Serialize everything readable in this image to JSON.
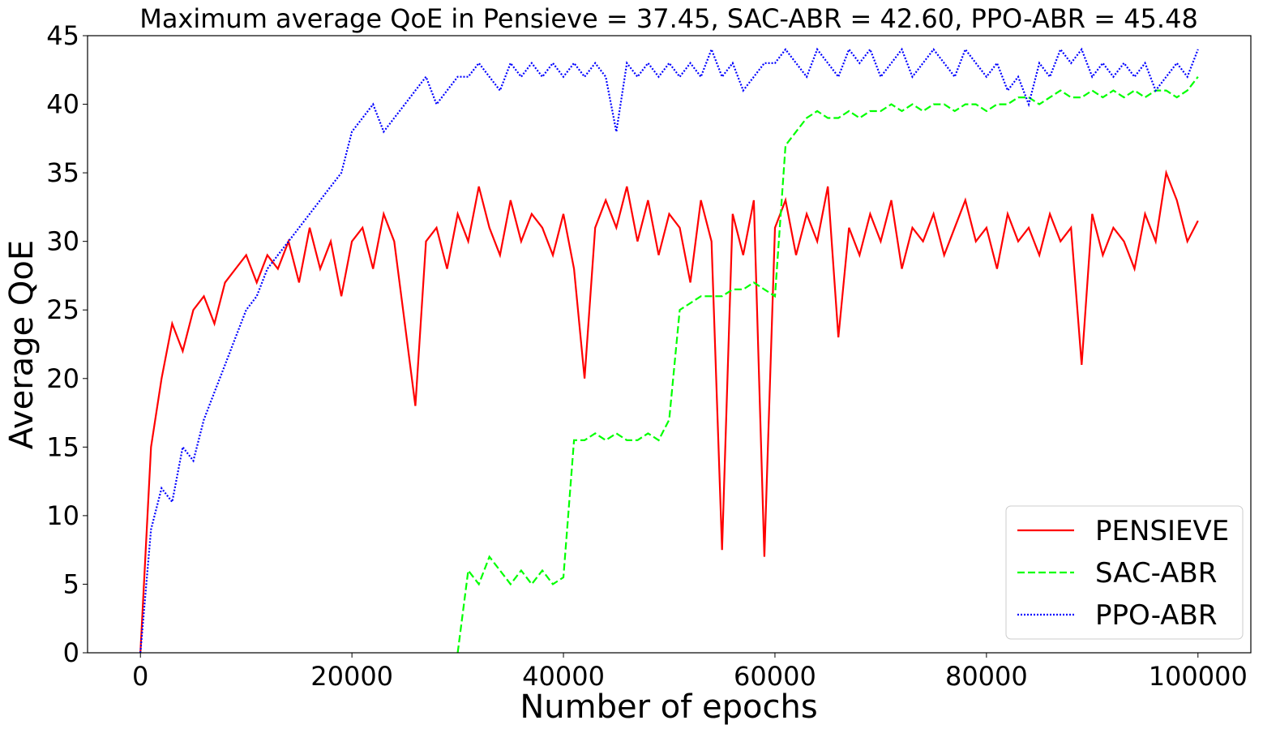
{
  "chart_data": {
    "type": "line",
    "title": "Maximum average QoE in Pensieve = 37.45, SAC-ABR = 42.60, PPO-ABR = 45.48",
    "xlabel": "Number of epochs",
    "ylabel": "Average QoE",
    "x": [
      0,
      1000,
      2000,
      3000,
      4000,
      5000,
      6000,
      7000,
      8000,
      9000,
      10000,
      11000,
      12000,
      13000,
      14000,
      15000,
      16000,
      17000,
      18000,
      19000,
      20000,
      21000,
      22000,
      23000,
      24000,
      25000,
      26000,
      27000,
      28000,
      29000,
      30000,
      31000,
      32000,
      33000,
      34000,
      35000,
      36000,
      37000,
      38000,
      39000,
      40000,
      41000,
      42000,
      43000,
      44000,
      45000,
      46000,
      47000,
      48000,
      49000,
      50000,
      51000,
      52000,
      53000,
      54000,
      55000,
      56000,
      57000,
      58000,
      59000,
      60000,
      61000,
      62000,
      63000,
      64000,
      65000,
      66000,
      67000,
      68000,
      69000,
      70000,
      71000,
      72000,
      73000,
      74000,
      75000,
      76000,
      77000,
      78000,
      79000,
      80000,
      81000,
      82000,
      83000,
      84000,
      85000,
      86000,
      87000,
      88000,
      89000,
      90000,
      91000,
      92000,
      93000,
      94000,
      95000,
      96000,
      97000,
      98000,
      99000,
      100000
    ],
    "series": [
      {
        "name": "PENSIEVE",
        "color": "#ff0000",
        "line_style": "solid",
        "values": [
          0,
          15,
          20,
          24,
          22,
          25,
          26,
          24,
          27,
          28,
          29,
          27,
          29,
          28,
          30,
          27,
          31,
          28,
          30,
          26,
          30,
          31,
          28,
          32,
          30,
          24,
          18,
          30,
          31,
          28,
          32,
          30,
          34,
          31,
          29,
          33,
          30,
          32,
          31,
          29,
          32,
          28,
          20,
          31,
          33,
          31,
          34,
          30,
          33,
          29,
          32,
          31,
          27,
          33,
          30,
          7.5,
          32,
          29,
          33,
          7,
          31,
          33,
          29,
          32,
          30,
          34,
          23,
          31,
          29,
          32,
          30,
          33,
          28,
          31,
          30,
          32,
          29,
          31,
          33,
          30,
          31,
          28,
          32,
          30,
          31,
          29,
          32,
          30,
          31,
          21,
          32,
          29,
          31,
          30,
          28,
          32,
          30,
          35,
          33,
          30,
          31.5
        ]
      },
      {
        "name": "SAC-ABR",
        "color": "#00ff00",
        "line_style": "dashed",
        "values": [
          null,
          null,
          null,
          null,
          null,
          null,
          null,
          null,
          null,
          null,
          null,
          null,
          null,
          null,
          null,
          null,
          null,
          null,
          null,
          null,
          null,
          null,
          null,
          null,
          null,
          null,
          null,
          null,
          null,
          null,
          0,
          6,
          5,
          7,
          6,
          5,
          6,
          5,
          6,
          5,
          5.5,
          15.5,
          15.5,
          16,
          15.5,
          16,
          15.5,
          15.5,
          16,
          15.5,
          17,
          25,
          25.5,
          26,
          26,
          26,
          26.5,
          26.5,
          27,
          26.5,
          26,
          37,
          38,
          39,
          39.5,
          39,
          39,
          39.5,
          39,
          39.5,
          39.5,
          40,
          39.5,
          40,
          39.5,
          40,
          40,
          39.5,
          40,
          40,
          39.5,
          40,
          40,
          40.5,
          40.5,
          40,
          40.5,
          41,
          40.5,
          40.5,
          41,
          40.5,
          41,
          40.5,
          41,
          40.5,
          41,
          41,
          40.5,
          41,
          42
        ]
      },
      {
        "name": "PPO-ABR",
        "color": "#0000ff",
        "line_style": "dotted",
        "values": [
          0,
          9,
          12,
          11,
          15,
          14,
          17,
          19,
          21,
          23,
          25,
          26,
          28,
          29,
          30,
          31,
          32,
          33,
          34,
          35,
          38,
          39,
          40,
          38,
          39,
          40,
          41,
          42,
          40,
          41,
          42,
          42,
          43,
          42,
          41,
          43,
          42,
          43,
          42,
          43,
          42,
          43,
          42,
          43,
          42,
          38,
          43,
          42,
          43,
          42,
          43,
          42,
          43,
          42,
          44,
          42,
          43,
          41,
          42,
          43,
          43,
          44,
          43,
          42,
          44,
          43,
          42,
          44,
          43,
          44,
          42,
          43,
          44,
          42,
          43,
          44,
          43,
          42,
          44,
          43,
          42,
          43,
          41,
          42,
          40,
          43,
          42,
          44,
          43,
          44,
          42,
          43,
          42,
          43,
          42,
          43,
          41,
          42,
          43,
          42,
          44
        ]
      }
    ],
    "xlim": [
      -5000,
      105000
    ],
    "ylim": [
      0,
      45
    ],
    "xticks": [
      0,
      20000,
      40000,
      60000,
      80000,
      100000
    ],
    "yticks": [
      0,
      5,
      10,
      15,
      20,
      25,
      30,
      35,
      40,
      45
    ],
    "legend": "lower right",
    "grid": false
  }
}
